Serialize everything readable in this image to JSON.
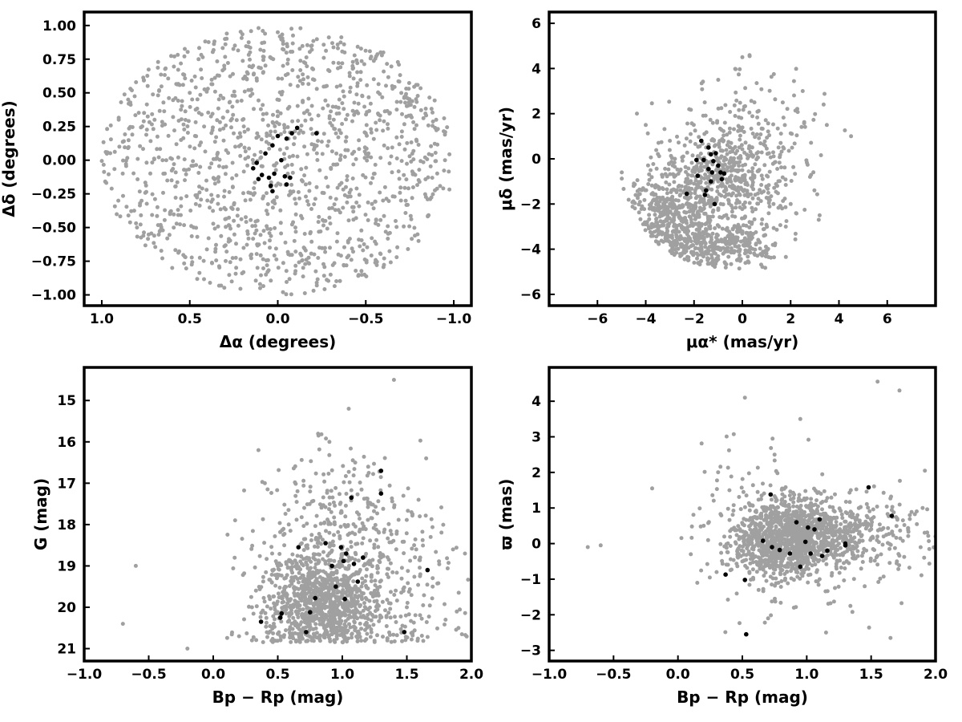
{
  "chart_data": [
    {
      "id": "position",
      "type": "scatter",
      "title": "",
      "xlabel": "Δα (degrees)",
      "ylabel": "Δδ (degrees)",
      "xlim": [
        1.1,
        -1.1
      ],
      "ylim": [
        -1.08,
        1.1
      ],
      "xticks": [
        1.0,
        0.5,
        0.0,
        -0.5,
        -1.0
      ],
      "xtick_labels": [
        "1.0",
        "0.5",
        "0.0",
        "−0.5",
        "−1.0"
      ],
      "yticks": [
        1.0,
        0.75,
        0.5,
        0.25,
        0.0,
        -0.25,
        -0.5,
        -0.75,
        -1.0
      ],
      "ytick_labels": [
        "1.00",
        "0.75",
        "0.50",
        "0.25",
        "0.00",
        "−0.25",
        "−0.50",
        "−0.75",
        "−1.00"
      ],
      "grid": false,
      "series": [
        {
          "color": "#a0a0a0",
          "points": [
            [
              -0.6,
              0.8
            ],
            [
              0.3,
              0.9
            ],
            [
              0.8,
              -0.5
            ],
            [
              -0.9,
              0.3
            ],
            [
              0.5,
              0.5
            ],
            [
              -0.4,
              -0.6
            ],
            [
              0.1,
              -0.95
            ],
            [
              0.9,
              0.1
            ],
            [
              -0.2,
              0.6
            ],
            [
              0.6,
              -0.8
            ],
            [
              -0.7,
              -0.3
            ],
            [
              0.2,
              0.3
            ],
            [
              -0.5,
              0.2
            ],
            [
              0.4,
              -0.3
            ],
            [
              -0.1,
              -0.5
            ],
            [
              0.7,
              0.3
            ],
            [
              -0.8,
              -0.6
            ],
            [
              0.0,
              0.95
            ],
            [
              0.45,
              0.75
            ],
            [
              -0.3,
              -0.85
            ],
            [
              0.85,
              0.45
            ],
            [
              -0.55,
              -0.1
            ],
            [
              0.15,
              -0.7
            ],
            [
              -0.95,
              0.0
            ],
            [
              0.65,
              -0.1
            ],
            [
              -0.35,
              0.45
            ],
            [
              0.25,
              -0.45
            ],
            [
              -0.65,
              0.55
            ],
            [
              0.55,
              0.15
            ],
            [
              -0.15,
              0.35
            ]
          ]
        },
        {
          "color": "#000000",
          "points": [
            [
              0.03,
              0.11
            ],
            [
              0.0,
              0.18
            ],
            [
              -0.05,
              0.16
            ],
            [
              -0.08,
              0.2
            ],
            [
              -0.11,
              0.24
            ],
            [
              0.07,
              0.05
            ],
            [
              -0.02,
              0.0
            ],
            [
              0.12,
              -0.02
            ],
            [
              0.14,
              -0.06
            ],
            [
              0.09,
              -0.11
            ],
            [
              0.11,
              -0.14
            ],
            [
              0.05,
              -0.13
            ],
            [
              0.02,
              -0.1
            ],
            [
              -0.04,
              -0.12
            ],
            [
              -0.07,
              -0.13
            ],
            [
              -0.05,
              -0.18
            ],
            [
              0.04,
              -0.19
            ],
            [
              0.03,
              -0.23
            ],
            [
              -0.22,
              0.2
            ]
          ]
        }
      ]
    },
    {
      "id": "proper-motion",
      "type": "scatter",
      "title": "",
      "xlabel": "μα* (mas/yr)",
      "ylabel": "μδ (mas/yr)",
      "xlim": [
        -8,
        8
      ],
      "ylim": [
        -6.5,
        6.5
      ],
      "xticks": [
        -6,
        -4,
        -2,
        0,
        2,
        4,
        6
      ],
      "xtick_labels": [
        "−6",
        "−4",
        "−2",
        "0",
        "2",
        "4",
        "6"
      ],
      "yticks": [
        -6,
        -4,
        -2,
        0,
        2,
        4,
        6
      ],
      "ytick_labels": [
        "−6",
        "−4",
        "−2",
        "0",
        "2",
        "4",
        "6"
      ],
      "grid": false,
      "series": [
        {
          "color": "#a0a0a0",
          "points": [
            [
              -4.5,
              -1.2
            ],
            [
              -3.5,
              -3.0
            ],
            [
              -2.0,
              -2.5
            ],
            [
              -1.0,
              -1.0
            ],
            [
              0.0,
              -0.5
            ],
            [
              -1.5,
              0.5
            ],
            [
              -3.0,
              0.8
            ],
            [
              -2.5,
              -3.8
            ],
            [
              -0.5,
              -3.5
            ],
            [
              1.0,
              -4.2
            ],
            [
              2.0,
              -2.0
            ],
            [
              1.5,
              0.5
            ],
            [
              0.5,
              2.5
            ],
            [
              -1.0,
              3.5
            ],
            [
              0.0,
              4.5
            ],
            [
              2.5,
              3.0
            ],
            [
              3.5,
              1.5
            ],
            [
              4.5,
              1.0
            ],
            [
              -4.0,
              1.5
            ],
            [
              -3.0,
              -2.0
            ],
            [
              -2.0,
              -0.5
            ],
            [
              -0.5,
              0.5
            ],
            [
              0.8,
              -1.5
            ],
            [
              1.8,
              -3.0
            ],
            [
              -1.2,
              -4.5
            ],
            [
              -3.8,
              -0.5
            ],
            [
              2.8,
              -0.8
            ],
            [
              3.2,
              -2.5
            ],
            [
              -2.2,
              2.2
            ],
            [
              0.3,
              -2.8
            ]
          ]
        },
        {
          "color": "#000000",
          "points": [
            [
              -1.7,
              0.8
            ],
            [
              -1.4,
              0.5
            ],
            [
              -1.3,
              0.2
            ],
            [
              -1.1,
              0.25
            ],
            [
              -1.9,
              -0.05
            ],
            [
              -1.6,
              -0.05
            ],
            [
              -1.2,
              -0.1
            ],
            [
              -1.0,
              -0.3
            ],
            [
              -0.9,
              -0.6
            ],
            [
              -0.75,
              -0.65
            ],
            [
              -1.4,
              -0.45
            ],
            [
              -1.25,
              -0.6
            ],
            [
              -1.85,
              -0.75
            ],
            [
              -0.85,
              -0.9
            ],
            [
              -1.3,
              -1.0
            ],
            [
              -1.5,
              -1.4
            ],
            [
              -1.55,
              -1.6
            ],
            [
              -2.3,
              -1.55
            ],
            [
              -1.15,
              -2.0
            ]
          ]
        }
      ]
    },
    {
      "id": "cmd",
      "type": "scatter",
      "title": "",
      "xlabel": "Bp − Rp (mag)",
      "ylabel": "G (mag)",
      "xlim": [
        -1.0,
        2.0
      ],
      "ylim": [
        21.3,
        14.2
      ],
      "xticks": [
        -1.0,
        -0.5,
        0.0,
        0.5,
        1.0,
        1.5,
        2.0
      ],
      "xtick_labels": [
        "−1.0",
        "−0.5",
        "0.0",
        "0.5",
        "1.0",
        "1.5",
        "2.0"
      ],
      "yticks": [
        21,
        20,
        19,
        18,
        17,
        16,
        15
      ],
      "ytick_labels": [
        "21",
        "20",
        "19",
        "18",
        "17",
        "16",
        "15"
      ],
      "grid": false,
      "series": [
        {
          "color": "#a0a0a0",
          "points": [
            [
              0.8,
              20.2
            ],
            [
              0.6,
              19.8
            ],
            [
              1.0,
              19.0
            ],
            [
              0.9,
              18.2
            ],
            [
              1.2,
              17.5
            ],
            [
              0.7,
              20.6
            ],
            [
              1.5,
              20.0
            ],
            [
              1.8,
              20.3
            ],
            [
              0.3,
              20.0
            ],
            [
              0.5,
              19.0
            ],
            [
              1.1,
              16.5
            ],
            [
              1.3,
              18.8
            ],
            [
              1.7,
              19.5
            ],
            [
              0.4,
              17.0
            ],
            [
              0.9,
              16.0
            ],
            [
              1.9,
              20.5
            ],
            [
              0.2,
              20.7
            ],
            [
              -0.2,
              21.0
            ],
            [
              -0.7,
              20.4
            ],
            [
              -0.6,
              19.0
            ],
            [
              0.35,
              16.2
            ],
            [
              1.4,
              14.5
            ],
            [
              1.6,
              17.8
            ],
            [
              1.0,
              20.5
            ],
            [
              1.25,
              19.6
            ],
            [
              0.55,
              18.5
            ],
            [
              0.75,
              17.2
            ],
            [
              1.05,
              15.2
            ],
            [
              1.65,
              16.4
            ],
            [
              1.95,
              18.7
            ]
          ]
        },
        {
          "color": "#000000",
          "points": [
            [
              0.37,
              20.35
            ],
            [
              0.72,
              20.6
            ],
            [
              0.52,
              20.25
            ],
            [
              0.53,
              20.15
            ],
            [
              0.75,
              20.12
            ],
            [
              0.79,
              19.78
            ],
            [
              1.02,
              19.8
            ],
            [
              1.12,
              19.38
            ],
            [
              0.95,
              19.5
            ],
            [
              1.09,
              18.95
            ],
            [
              0.92,
              19.0
            ],
            [
              1.01,
              18.88
            ],
            [
              1.16,
              18.8
            ],
            [
              0.66,
              18.55
            ],
            [
              0.87,
              18.45
            ],
            [
              0.99,
              18.55
            ],
            [
              1.03,
              18.7
            ],
            [
              1.07,
              17.35
            ],
            [
              1.3,
              17.25
            ],
            [
              1.3,
              16.7
            ],
            [
              1.48,
              20.6
            ],
            [
              1.66,
              19.1
            ]
          ]
        }
      ]
    },
    {
      "id": "parallax",
      "type": "scatter",
      "title": "",
      "xlabel": "Bp − Rp (mag)",
      "ylabel": "ϖ (mas)",
      "xlim": [
        -1.0,
        2.0
      ],
      "ylim": [
        -3.3,
        4.95
      ],
      "xticks": [
        -1.0,
        -0.5,
        0.0,
        0.5,
        1.0,
        1.5,
        2.0
      ],
      "xtick_labels": [
        "−1.0",
        "−0.5",
        "0.0",
        "0.5",
        "1.0",
        "1.5",
        "2.0"
      ],
      "yticks": [
        4,
        3,
        2,
        1,
        0,
        -1,
        -2,
        -3
      ],
      "ytick_labels": [
        "4",
        "3",
        "2",
        "1",
        "0",
        "−1",
        "−2",
        "−3"
      ],
      "grid": false,
      "series": [
        {
          "color": "#a0a0a0",
          "points": [
            [
              0.8,
              0.2
            ],
            [
              0.6,
              0.5
            ],
            [
              1.0,
              -0.2
            ],
            [
              0.9,
              0.8
            ],
            [
              1.2,
              0.1
            ],
            [
              0.5,
              -0.5
            ],
            [
              1.5,
              0.5
            ],
            [
              1.8,
              0.8
            ],
            [
              0.3,
              -0.8
            ],
            [
              0.4,
              1.5
            ],
            [
              1.1,
              -1.0
            ],
            [
              1.3,
              0.3
            ],
            [
              1.7,
              -0.5
            ],
            [
              0.2,
              0.5
            ],
            [
              0.9,
              -1.8
            ],
            [
              1.9,
              1.0
            ],
            [
              -0.7,
              -0.1
            ],
            [
              -0.6,
              -0.05
            ],
            [
              -0.2,
              1.55
            ],
            [
              0.52,
              4.1
            ],
            [
              1.55,
              4.55
            ],
            [
              1.72,
              4.3
            ],
            [
              0.95,
              3.5
            ],
            [
              0.7,
              -2.1
            ],
            [
              1.15,
              -2.5
            ],
            [
              1.65,
              -2.65
            ],
            [
              0.1,
              -0.3
            ],
            [
              1.45,
              -1.2
            ],
            [
              0.75,
              2.5
            ],
            [
              2.0,
              0.2
            ]
          ]
        },
        {
          "color": "#000000",
          "points": [
            [
              0.37,
              -0.87
            ],
            [
              0.52,
              -1.02
            ],
            [
              0.66,
              0.08
            ],
            [
              0.72,
              1.38
            ],
            [
              0.73,
              -0.1
            ],
            [
              0.79,
              -0.18
            ],
            [
              0.87,
              -0.28
            ],
            [
              0.92,
              0.6
            ],
            [
              0.95,
              -0.65
            ],
            [
              0.99,
              0.05
            ],
            [
              1.01,
              0.45
            ],
            [
              1.03,
              -0.28
            ],
            [
              1.06,
              0.4
            ],
            [
              1.1,
              0.68
            ],
            [
              1.12,
              -0.35
            ],
            [
              1.16,
              -0.2
            ],
            [
              1.3,
              0.0
            ],
            [
              1.3,
              -0.05
            ],
            [
              1.48,
              1.58
            ],
            [
              1.66,
              0.78
            ],
            [
              0.53,
              -2.55
            ]
          ]
        }
      ]
    }
  ]
}
